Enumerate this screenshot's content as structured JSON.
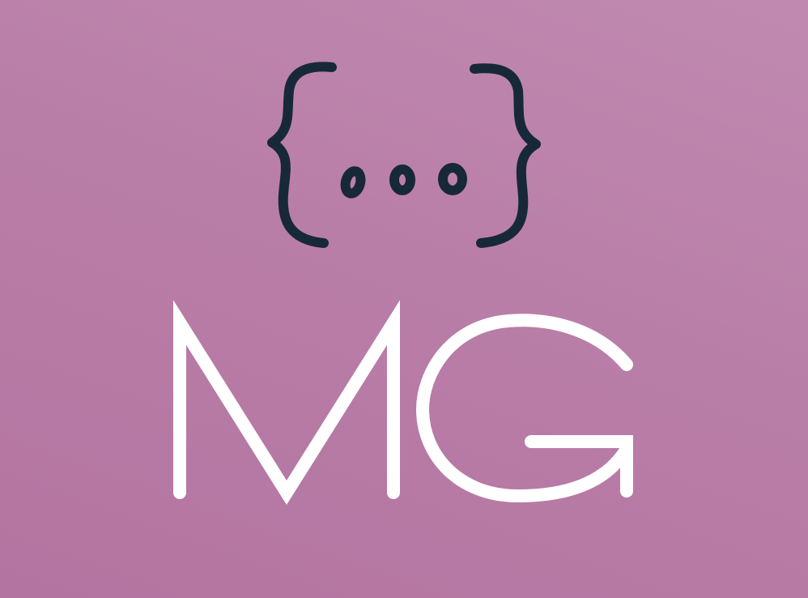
{
  "logo": {
    "monogram": "MG",
    "icon": "curly-braces-ellipsis-icon"
  },
  "colors": {
    "background_top": "#c08ab0",
    "background_bottom": "#b474a1",
    "icon": "#17283a",
    "monogram": "#ffffff"
  }
}
